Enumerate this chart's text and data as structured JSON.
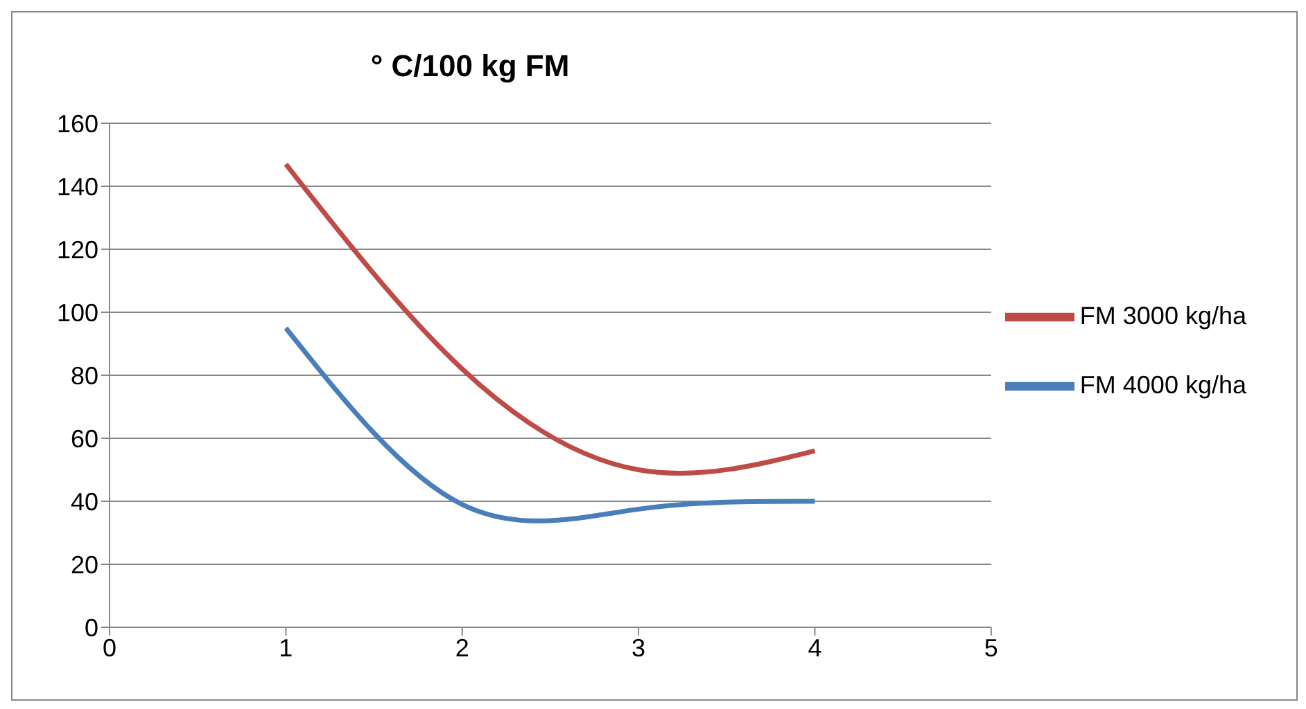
{
  "chart_data": {
    "type": "line",
    "title": "° C/100 kg FM",
    "x": [
      1,
      2,
      3,
      4
    ],
    "series": [
      {
        "name": "FM 4000 kg/ha",
        "color": "#4a7ebb",
        "values": [
          95,
          39,
          37.5,
          40
        ]
      },
      {
        "name": "FM 3000 kg/ha",
        "color": "#be4b48",
        "values": [
          147,
          82,
          50,
          56
        ]
      }
    ],
    "xlim": [
      0,
      5
    ],
    "xticks": [
      0,
      1,
      2,
      3,
      4,
      5
    ],
    "ylim": [
      0,
      160
    ],
    "yticks": [
      0,
      20,
      40,
      60,
      80,
      100,
      120,
      140,
      160
    ],
    "grid": "y",
    "legend": "right",
    "marker": "none",
    "line_style": "solid"
  }
}
